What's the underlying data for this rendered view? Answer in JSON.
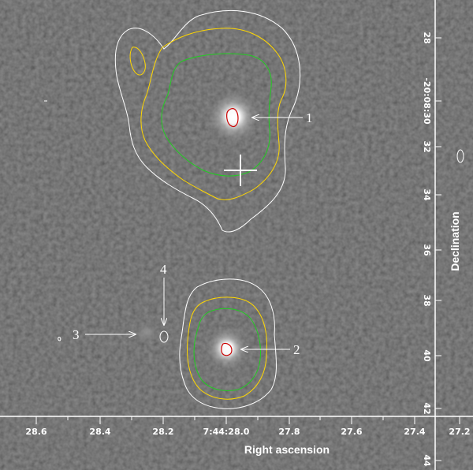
{
  "image": {
    "kind": "astronomical greyscale image with contour overlay",
    "background_color": "#4a4a4a"
  },
  "axes": {
    "x_title": "Right ascension",
    "y_title": "Declination",
    "x_ticks": [
      "28.6",
      "28.4",
      "28.2",
      "7:44:28.0",
      "27.8",
      "27.6",
      "27.4",
      "27.2"
    ],
    "y_ticks": [
      "28",
      "-20:08:30",
      "32",
      "34",
      "36",
      "38",
      "40",
      "42",
      "44"
    ]
  },
  "contours": {
    "colors": {
      "outer": "#ffffff",
      "second": "#ffd700",
      "third": "#22cc22",
      "core": "#cc0000"
    }
  },
  "sources": [
    {
      "id": "1",
      "label": "1"
    },
    {
      "id": "2",
      "label": "2"
    },
    {
      "id": "3",
      "label": "3"
    },
    {
      "id": "4",
      "label": "4"
    }
  ],
  "marker": {
    "symbol": "cross",
    "color": "#ffffff"
  }
}
